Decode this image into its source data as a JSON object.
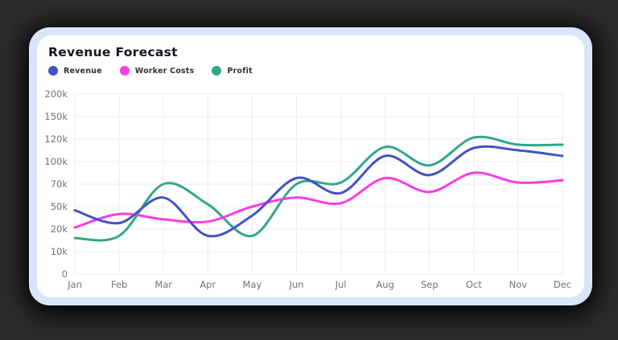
{
  "title": "Revenue Forecast",
  "legend": [
    {
      "label": "Revenue",
      "color": "#4153c5"
    },
    {
      "label": "Worker Costs",
      "color": "#fa3de5"
    },
    {
      "label": "Profit",
      "color": "#30a78a"
    }
  ],
  "page_colors": {
    "background": "#2b2b2b",
    "card_outer": "#d9e6f9",
    "card_inner": "#ffffff",
    "grid": "#ececf2",
    "axis_text": "#71717c",
    "title_text": "#15151e"
  },
  "chart_data": {
    "type": "line",
    "smooth": true,
    "grid": true,
    "legend_position": "top",
    "title": "Revenue Forecast",
    "categories": [
      "Jan",
      "Feb",
      "Mar",
      "Apr",
      "May",
      "Jun",
      "Jul",
      "Aug",
      "Sep",
      "Oct",
      "Nov",
      "Dec"
    ],
    "y_ticks": [
      {
        "value": 0,
        "label": "0"
      },
      {
        "value": 10000,
        "label": "10k"
      },
      {
        "value": 20000,
        "label": "20k"
      },
      {
        "value": 50000,
        "label": "50k"
      },
      {
        "value": 70000,
        "label": "70k"
      },
      {
        "value": 100000,
        "label": "100k"
      },
      {
        "value": 120000,
        "label": "120k"
      },
      {
        "value": 150000,
        "label": "150k"
      },
      {
        "value": 200000,
        "label": "200k"
      }
    ],
    "y_axis_note": "ticks are evenly spaced (non-linear value scale)",
    "series": [
      {
        "name": "Revenue",
        "color": "#4153c5",
        "values": [
          45000,
          28000,
          58000,
          17000,
          38000,
          78000,
          62000,
          105000,
          82000,
          112000,
          110000,
          105000
        ]
      },
      {
        "name": "Worker Costs",
        "color": "#fa3de5",
        "values": [
          22000,
          40000,
          33000,
          30000,
          50000,
          58000,
          53000,
          78000,
          63000,
          85000,
          72000,
          75000
        ]
      },
      {
        "name": "Profit",
        "color": "#30a78a",
        "values": [
          16000,
          17000,
          70000,
          52000,
          17000,
          70000,
          72000,
          113000,
          95000,
          122000,
          115000,
          115000
        ]
      }
    ]
  }
}
